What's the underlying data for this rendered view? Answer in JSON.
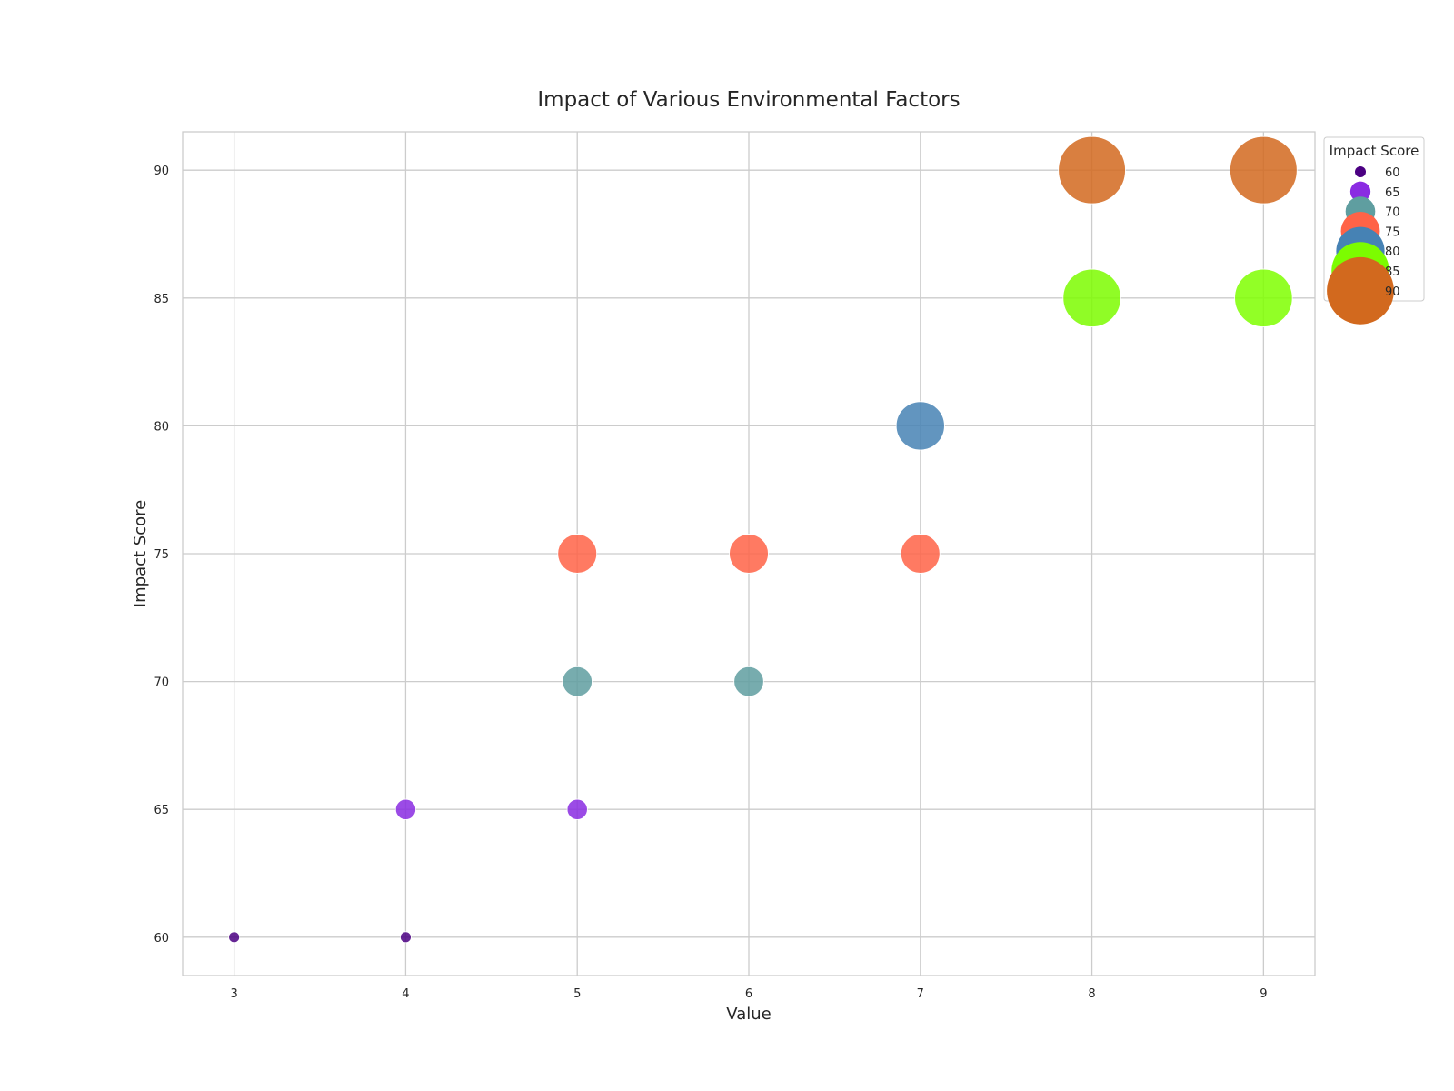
{
  "chart_data": {
    "type": "scatter",
    "title": "Impact of Various Environmental Factors",
    "xlabel": "Value",
    "ylabel": "Impact Score",
    "xlim": [
      2.7,
      9.3
    ],
    "ylim": [
      58.5,
      91.5
    ],
    "xticks": [
      "3",
      "4",
      "5",
      "6",
      "7",
      "8",
      "9"
    ],
    "yticks": [
      "60",
      "65",
      "70",
      "75",
      "80",
      "85",
      "90"
    ],
    "grid": true,
    "legend": {
      "title": "Impact Score",
      "placement": "outside top-right",
      "entries": [
        {
          "label": "60",
          "color": "#4B0082"
        },
        {
          "label": "65",
          "color": "#8A2BE2"
        },
        {
          "label": "70",
          "color": "#5F9EA0"
        },
        {
          "label": "75",
          "color": "#FF6347"
        },
        {
          "label": "80",
          "color": "#4682B4"
        },
        {
          "label": "85",
          "color": "#7CFC00"
        },
        {
          "label": "90",
          "color": "#D2691E"
        }
      ]
    },
    "points": [
      {
        "x": 3,
        "y": 60,
        "color": "#4B0082"
      },
      {
        "x": 4,
        "y": 60,
        "color": "#4B0082"
      },
      {
        "x": 4,
        "y": 65,
        "color": "#8A2BE2"
      },
      {
        "x": 5,
        "y": 65,
        "color": "#8A2BE2"
      },
      {
        "x": 5,
        "y": 70,
        "color": "#5F9EA0"
      },
      {
        "x": 6,
        "y": 70,
        "color": "#5F9EA0"
      },
      {
        "x": 5,
        "y": 75,
        "color": "#FF6347"
      },
      {
        "x": 6,
        "y": 75,
        "color": "#FF6347"
      },
      {
        "x": 7,
        "y": 75,
        "color": "#FF6347"
      },
      {
        "x": 7,
        "y": 80,
        "color": "#4682B4"
      },
      {
        "x": 8,
        "y": 85,
        "color": "#7CFC00"
      },
      {
        "x": 9,
        "y": 85,
        "color": "#7FFF00"
      },
      {
        "x": 8,
        "y": 90,
        "color": "#D2691E"
      },
      {
        "x": 9,
        "y": 90,
        "color": "#D2691E"
      }
    ]
  }
}
